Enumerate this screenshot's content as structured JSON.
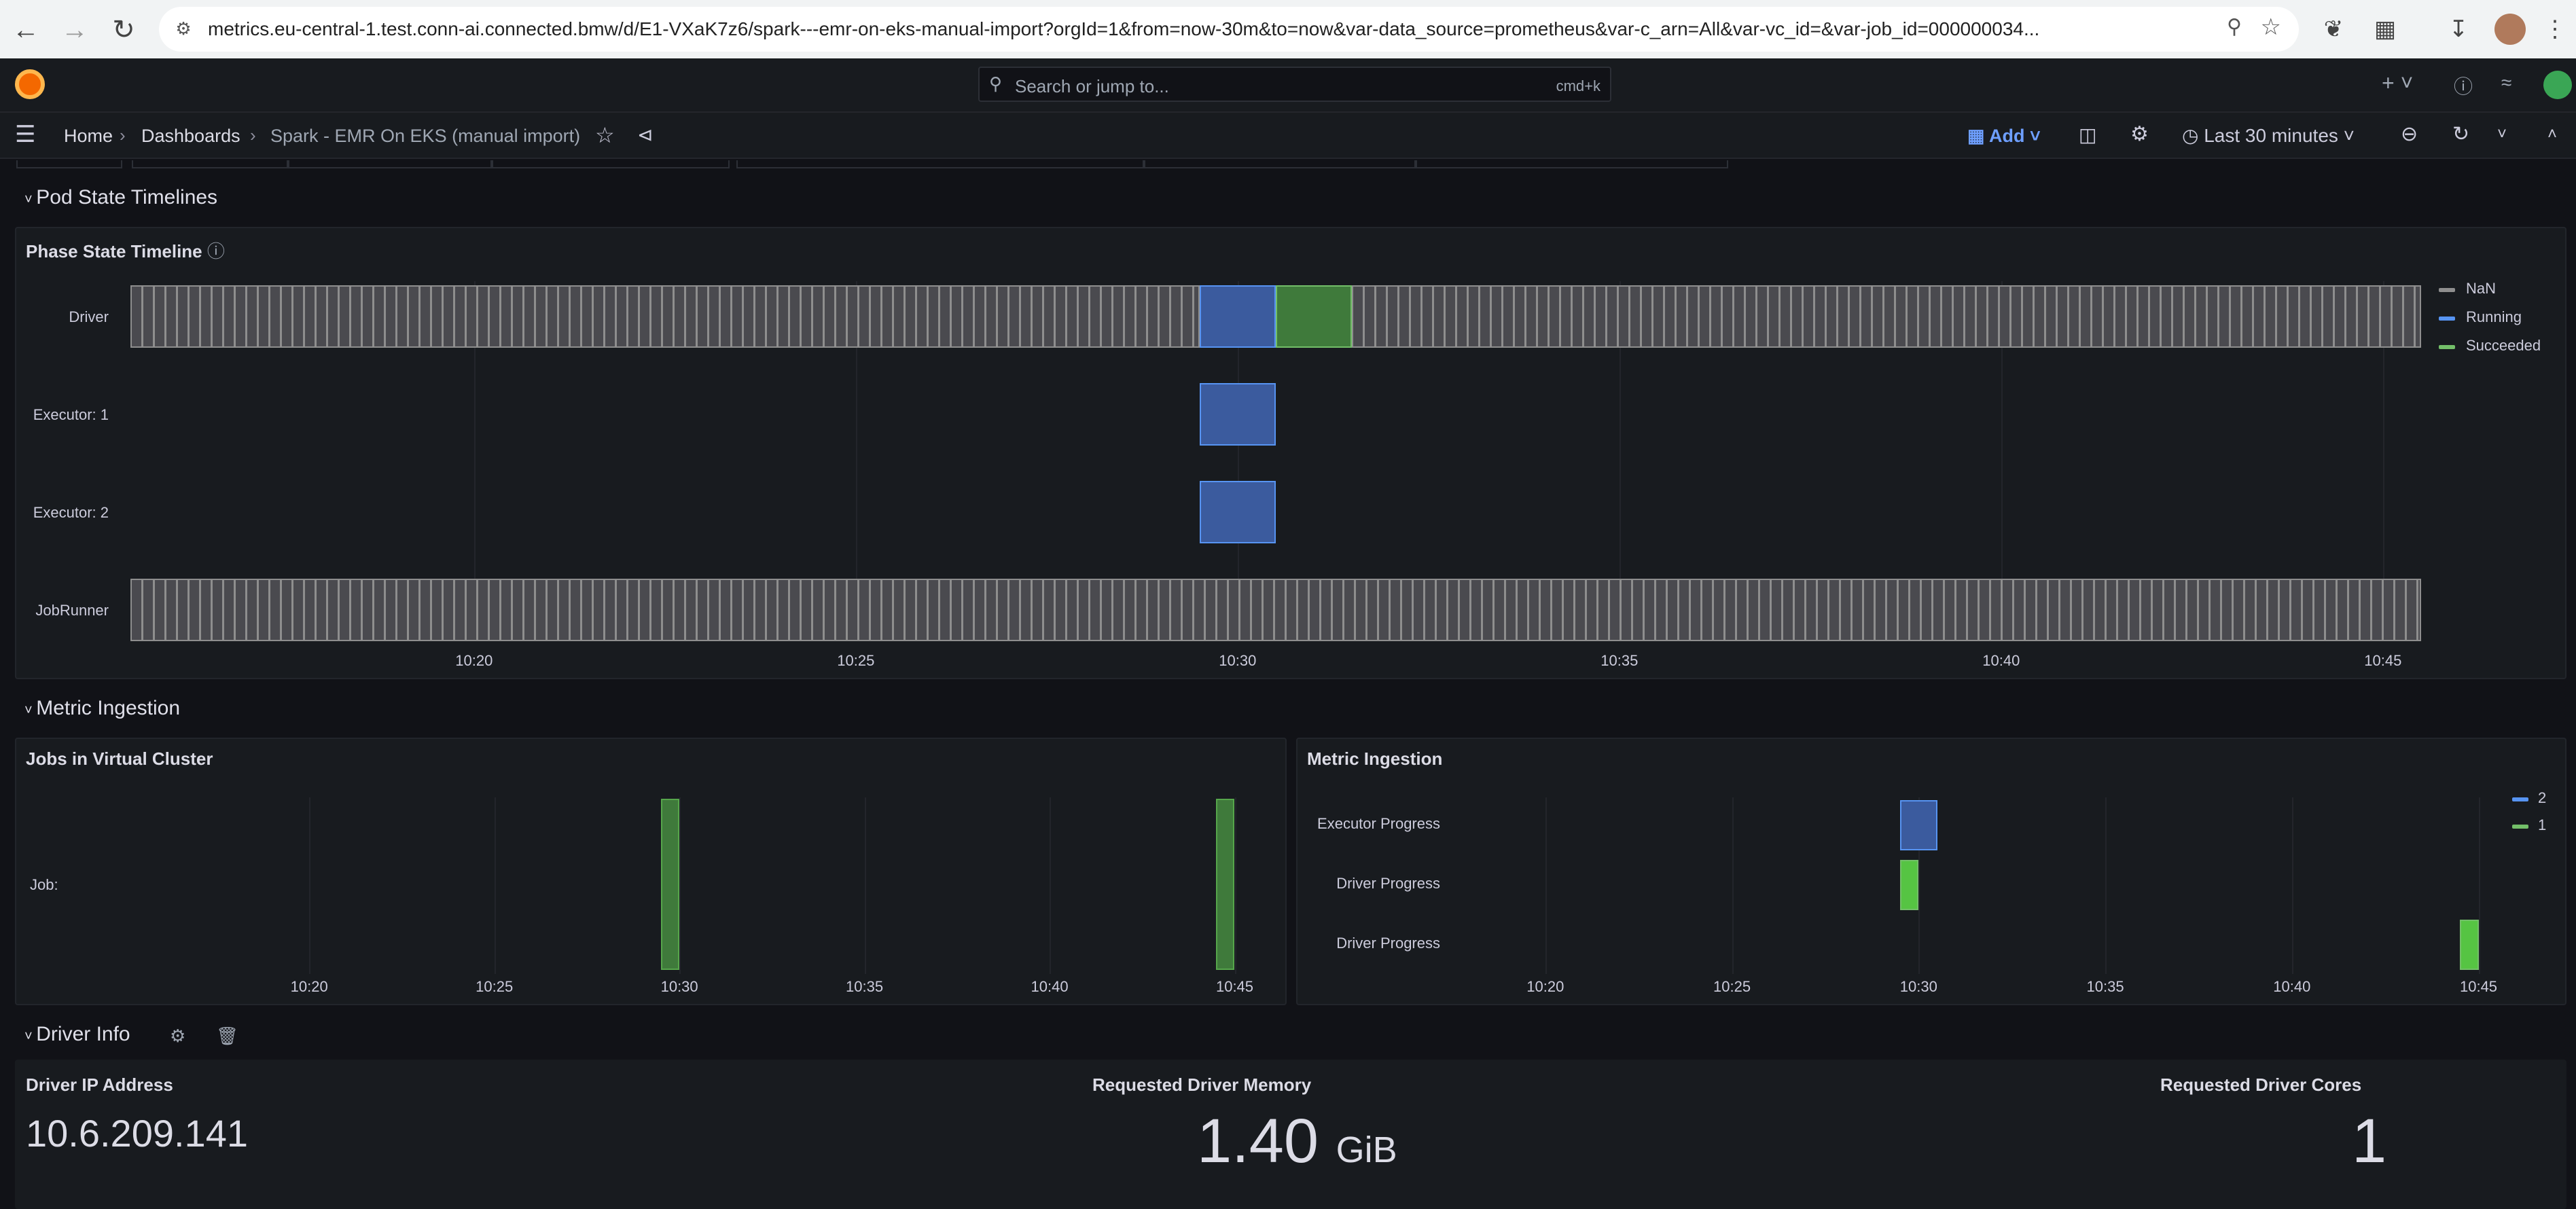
{
  "browser": {
    "url": "metrics.eu-central-1.test.conn-ai.connected.bmw/d/E1-VXaK7z6/spark---emr-on-eks-manual-import?orgId=1&from=now-30m&to=now&var-data_source=prometheus&var-c_arn=All&var-vc_id=&var-job_id=000000034..."
  },
  "topbar": {
    "search_placeholder": "Search or jump to...",
    "search_shortcut": "cmd+k"
  },
  "breadcrumb": {
    "home": "Home",
    "dashboards": "Dashboards",
    "current": "Spark - EMR On EKS (manual import)"
  },
  "toolbar": {
    "add_label": "Add",
    "time_range": "Last 30 minutes"
  },
  "rows": {
    "pod_state": "Pod State Timelines",
    "metric_ingestion": "Metric Ingestion",
    "driver_info": "Driver Info"
  },
  "phase_panel": {
    "title": "Phase State Timeline",
    "rows": [
      "Driver",
      "Executor: 1",
      "Executor: 2",
      "JobRunner"
    ],
    "x_ticks": [
      "10:20",
      "10:25",
      "10:30",
      "10:35",
      "10:40",
      "10:45"
    ],
    "legend": [
      {
        "name": "NaN",
        "color": "#8e8e8e"
      },
      {
        "name": "Running",
        "color": "#5794f2"
      },
      {
        "name": "Succeeded",
        "color": "#73bf69"
      }
    ]
  },
  "chart_data": [
    {
      "type": "timeline",
      "title": "Phase State Timeline",
      "rows": [
        {
          "name": "Driver",
          "segments": [
            {
              "state": "NaN",
              "start": "10:15:30",
              "end": "10:29:30"
            },
            {
              "state": "Running",
              "start": "10:29:30",
              "end": "10:30:30"
            },
            {
              "state": "Succeeded",
              "start": "10:30:30",
              "end": "10:31:30"
            },
            {
              "state": "NaN",
              "start": "10:31:30",
              "end": "10:45:30"
            }
          ]
        },
        {
          "name": "Executor: 1",
          "segments": [
            {
              "state": "Running",
              "start": "10:29:30",
              "end": "10:30:30"
            }
          ]
        },
        {
          "name": "Executor: 2",
          "segments": [
            {
              "state": "Running",
              "start": "10:29:30",
              "end": "10:30:30"
            }
          ]
        },
        {
          "name": "JobRunner",
          "segments": [
            {
              "state": "NaN",
              "start": "10:15:30",
              "end": "10:45:30"
            }
          ]
        }
      ]
    },
    {
      "type": "timeline",
      "title": "Jobs in Virtual Cluster",
      "rows": [
        {
          "name": "Job:",
          "segments": [
            {
              "start": "10:29:30",
              "end": "10:30:00",
              "color": "#56a64b"
            },
            {
              "start": "10:44:30",
              "end": "10:45:00",
              "color": "#56a64b"
            }
          ]
        }
      ]
    },
    {
      "type": "timeline",
      "title": "Metric Ingestion",
      "rows": [
        {
          "name": "Executor Progress",
          "segments": [
            {
              "value": "2",
              "start": "10:29:30",
              "end": "10:30:30"
            }
          ]
        },
        {
          "name": "Driver Progress",
          "segments": [
            {
              "value": "1",
              "start": "10:29:30",
              "end": "10:30:00"
            }
          ]
        },
        {
          "name": "Driver Progress",
          "segments": [
            {
              "value": "1",
              "start": "10:44:30",
              "end": "10:45:00"
            }
          ]
        }
      ],
      "legend": [
        {
          "name": "2",
          "color": "#5794f2"
        },
        {
          "name": "1",
          "color": "#73bf69"
        }
      ]
    }
  ],
  "jobs_panel": {
    "title": "Jobs in Virtual Cluster",
    "row_label": "Job:",
    "x_ticks": [
      "10:20",
      "10:25",
      "10:30",
      "10:35",
      "10:40",
      "10:45"
    ]
  },
  "ingestion_panel": {
    "title": "Metric Ingestion",
    "rows": [
      "Executor Progress",
      "Driver Progress",
      "Driver Progress"
    ],
    "x_ticks": [
      "10:20",
      "10:25",
      "10:30",
      "10:35",
      "10:40",
      "10:45"
    ],
    "legend": [
      {
        "name": "2",
        "color": "#5794f2"
      },
      {
        "name": "1",
        "color": "#73bf69"
      }
    ]
  },
  "driver_info": {
    "ip_title": "Driver IP Address",
    "ip_value": "10.6.209.141",
    "mem_title": "Requested Driver Memory",
    "mem_value": "1.40",
    "mem_unit": "GiB",
    "cores_title": "Requested Driver Cores",
    "cores_value": "1"
  }
}
